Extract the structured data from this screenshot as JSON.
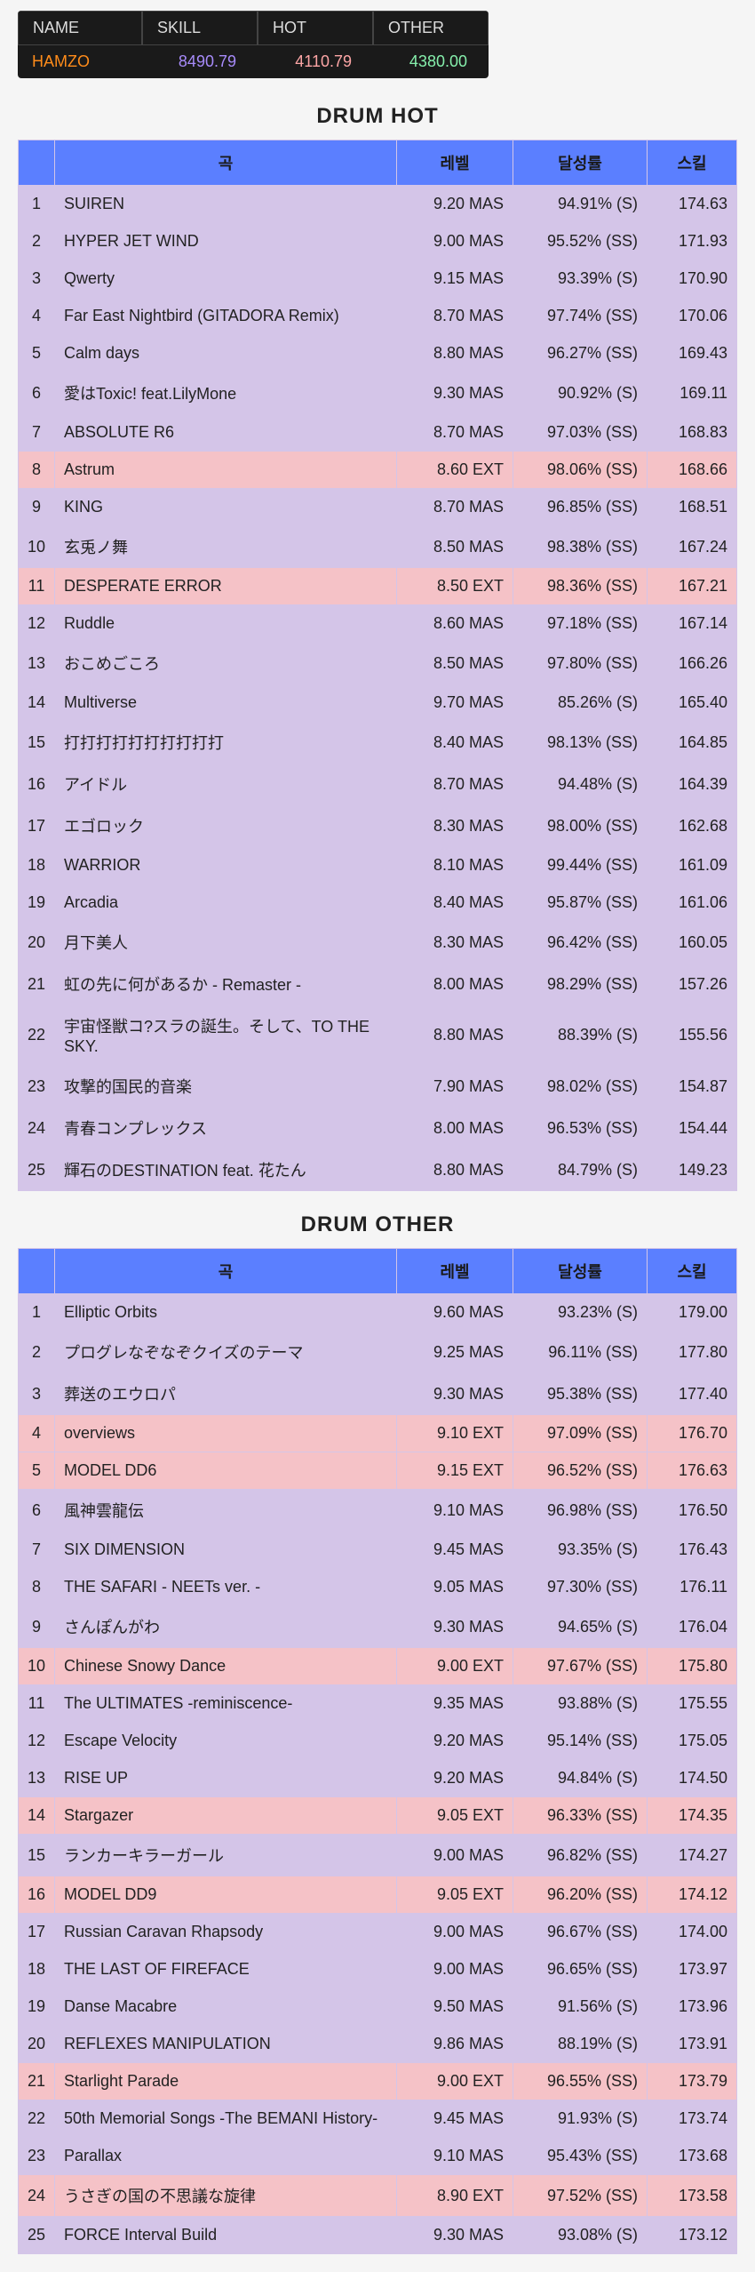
{
  "player": {
    "headers": {
      "name": "NAME",
      "skill": "SKILL",
      "hot": "HOT",
      "other": "OTHER"
    },
    "values": {
      "name": "HAMZO",
      "skill": "8490.79",
      "hot": "4110.79",
      "other": "4380.00"
    }
  },
  "section1_title": "DRUM HOT",
  "section2_title": "DRUM OTHER",
  "table_header": {
    "song": "곡",
    "level": "레벨",
    "rate": "달성률",
    "skill": "스킬"
  },
  "hot_rows": [
    {
      "rank": "1",
      "song": "SUIREN",
      "level": "9.20 MAS",
      "rate": "94.91% (S)",
      "skill": "174.63",
      "type": "MAS"
    },
    {
      "rank": "2",
      "song": "HYPER JET WIND",
      "level": "9.00 MAS",
      "rate": "95.52% (SS)",
      "skill": "171.93",
      "type": "MAS"
    },
    {
      "rank": "3",
      "song": "Qwerty",
      "level": "9.15 MAS",
      "rate": "93.39% (S)",
      "skill": "170.90",
      "type": "MAS"
    },
    {
      "rank": "4",
      "song": "Far East Nightbird (GITADORA Remix)",
      "level": "8.70 MAS",
      "rate": "97.74% (SS)",
      "skill": "170.06",
      "type": "MAS"
    },
    {
      "rank": "5",
      "song": "Calm days",
      "level": "8.80 MAS",
      "rate": "96.27% (SS)",
      "skill": "169.43",
      "type": "MAS"
    },
    {
      "rank": "6",
      "song": "愛はToxic! feat.LilyMone",
      "level": "9.30 MAS",
      "rate": "90.92% (S)",
      "skill": "169.11",
      "type": "MAS"
    },
    {
      "rank": "7",
      "song": "ABSOLUTE R6",
      "level": "8.70 MAS",
      "rate": "97.03% (SS)",
      "skill": "168.83",
      "type": "MAS"
    },
    {
      "rank": "8",
      "song": "Astrum",
      "level": "8.60 EXT",
      "rate": "98.06% (SS)",
      "skill": "168.66",
      "type": "EXT"
    },
    {
      "rank": "9",
      "song": "KING",
      "level": "8.70 MAS",
      "rate": "96.85% (SS)",
      "skill": "168.51",
      "type": "MAS"
    },
    {
      "rank": "10",
      "song": "玄兎ノ舞",
      "level": "8.50 MAS",
      "rate": "98.38% (SS)",
      "skill": "167.24",
      "type": "MAS"
    },
    {
      "rank": "11",
      "song": "DESPERATE ERROR",
      "level": "8.50 EXT",
      "rate": "98.36% (SS)",
      "skill": "167.21",
      "type": "EXT"
    },
    {
      "rank": "12",
      "song": "Ruddle",
      "level": "8.60 MAS",
      "rate": "97.18% (SS)",
      "skill": "167.14",
      "type": "MAS"
    },
    {
      "rank": "13",
      "song": "おこめごころ",
      "level": "8.50 MAS",
      "rate": "97.80% (SS)",
      "skill": "166.26",
      "type": "MAS"
    },
    {
      "rank": "14",
      "song": "Multiverse",
      "level": "9.70 MAS",
      "rate": "85.26% (S)",
      "skill": "165.40",
      "type": "MAS"
    },
    {
      "rank": "15",
      "song": "打打打打打打打打打打",
      "level": "8.40 MAS",
      "rate": "98.13% (SS)",
      "skill": "164.85",
      "type": "MAS"
    },
    {
      "rank": "16",
      "song": "アイドル",
      "level": "8.70 MAS",
      "rate": "94.48% (S)",
      "skill": "164.39",
      "type": "MAS"
    },
    {
      "rank": "17",
      "song": "エゴロック",
      "level": "8.30 MAS",
      "rate": "98.00% (SS)",
      "skill": "162.68",
      "type": "MAS"
    },
    {
      "rank": "18",
      "song": "WARRIOR",
      "level": "8.10 MAS",
      "rate": "99.44% (SS)",
      "skill": "161.09",
      "type": "MAS"
    },
    {
      "rank": "19",
      "song": "Arcadia",
      "level": "8.40 MAS",
      "rate": "95.87% (SS)",
      "skill": "161.06",
      "type": "MAS"
    },
    {
      "rank": "20",
      "song": "月下美人",
      "level": "8.30 MAS",
      "rate": "96.42% (SS)",
      "skill": "160.05",
      "type": "MAS"
    },
    {
      "rank": "21",
      "song": "虹の先に何があるか - Remaster -",
      "level": "8.00 MAS",
      "rate": "98.29% (SS)",
      "skill": "157.26",
      "type": "MAS"
    },
    {
      "rank": "22",
      "song": "宇宙怪獣コ?スラの誕生。そして、TO THE SKY.",
      "level": "8.80 MAS",
      "rate": "88.39% (S)",
      "skill": "155.56",
      "type": "MAS"
    },
    {
      "rank": "23",
      "song": "攻撃的国民的音楽",
      "level": "7.90 MAS",
      "rate": "98.02% (SS)",
      "skill": "154.87",
      "type": "MAS"
    },
    {
      "rank": "24",
      "song": "青春コンプレックス",
      "level": "8.00 MAS",
      "rate": "96.53% (SS)",
      "skill": "154.44",
      "type": "MAS"
    },
    {
      "rank": "25",
      "song": "輝石のDESTINATION feat. 花たん",
      "level": "8.80 MAS",
      "rate": "84.79% (S)",
      "skill": "149.23",
      "type": "MAS"
    }
  ],
  "other_rows": [
    {
      "rank": "1",
      "song": "Elliptic Orbits",
      "level": "9.60 MAS",
      "rate": "93.23% (S)",
      "skill": "179.00",
      "type": "MAS"
    },
    {
      "rank": "2",
      "song": "プログレなぞなぞクイズのテーマ",
      "level": "9.25 MAS",
      "rate": "96.11% (SS)",
      "skill": "177.80",
      "type": "MAS"
    },
    {
      "rank": "3",
      "song": "葬送のエウロパ",
      "level": "9.30 MAS",
      "rate": "95.38% (SS)",
      "skill": "177.40",
      "type": "MAS"
    },
    {
      "rank": "4",
      "song": "overviews",
      "level": "9.10 EXT",
      "rate": "97.09% (SS)",
      "skill": "176.70",
      "type": "EXT"
    },
    {
      "rank": "5",
      "song": "MODEL DD6",
      "level": "9.15 EXT",
      "rate": "96.52% (SS)",
      "skill": "176.63",
      "type": "EXT"
    },
    {
      "rank": "6",
      "song": "風神雲龍伝",
      "level": "9.10 MAS",
      "rate": "96.98% (SS)",
      "skill": "176.50",
      "type": "MAS"
    },
    {
      "rank": "7",
      "song": "SIX DIMENSION",
      "level": "9.45 MAS",
      "rate": "93.35% (S)",
      "skill": "176.43",
      "type": "MAS"
    },
    {
      "rank": "8",
      "song": "THE SAFARI - NEETs ver. -",
      "level": "9.05 MAS",
      "rate": "97.30% (SS)",
      "skill": "176.11",
      "type": "MAS"
    },
    {
      "rank": "9",
      "song": "さんぽんがわ",
      "level": "9.30 MAS",
      "rate": "94.65% (S)",
      "skill": "176.04",
      "type": "MAS"
    },
    {
      "rank": "10",
      "song": "Chinese Snowy Dance",
      "level": "9.00 EXT",
      "rate": "97.67% (SS)",
      "skill": "175.80",
      "type": "EXT"
    },
    {
      "rank": "11",
      "song": "The ULTIMATES -reminiscence-",
      "level": "9.35 MAS",
      "rate": "93.88% (S)",
      "skill": "175.55",
      "type": "MAS"
    },
    {
      "rank": "12",
      "song": "Escape Velocity",
      "level": "9.20 MAS",
      "rate": "95.14% (SS)",
      "skill": "175.05",
      "type": "MAS"
    },
    {
      "rank": "13",
      "song": "RISE UP",
      "level": "9.20 MAS",
      "rate": "94.84% (S)",
      "skill": "174.50",
      "type": "MAS"
    },
    {
      "rank": "14",
      "song": "Stargazer",
      "level": "9.05 EXT",
      "rate": "96.33% (SS)",
      "skill": "174.35",
      "type": "EXT"
    },
    {
      "rank": "15",
      "song": "ランカーキラーガール",
      "level": "9.00 MAS",
      "rate": "96.82% (SS)",
      "skill": "174.27",
      "type": "MAS"
    },
    {
      "rank": "16",
      "song": "MODEL DD9",
      "level": "9.05 EXT",
      "rate": "96.20% (SS)",
      "skill": "174.12",
      "type": "EXT"
    },
    {
      "rank": "17",
      "song": "Russian Caravan Rhapsody",
      "level": "9.00 MAS",
      "rate": "96.67% (SS)",
      "skill": "174.00",
      "type": "MAS"
    },
    {
      "rank": "18",
      "song": "THE LAST OF FIREFACE",
      "level": "9.00 MAS",
      "rate": "96.65% (SS)",
      "skill": "173.97",
      "type": "MAS"
    },
    {
      "rank": "19",
      "song": "Danse Macabre",
      "level": "9.50 MAS",
      "rate": "91.56% (S)",
      "skill": "173.96",
      "type": "MAS"
    },
    {
      "rank": "20",
      "song": "REFLEXES MANIPULATION",
      "level": "9.86 MAS",
      "rate": "88.19% (S)",
      "skill": "173.91",
      "type": "MAS"
    },
    {
      "rank": "21",
      "song": "Starlight Parade",
      "level": "9.00 EXT",
      "rate": "96.55% (SS)",
      "skill": "173.79",
      "type": "EXT"
    },
    {
      "rank": "22",
      "song": "50th Memorial Songs -The BEMANI History-",
      "level": "9.45 MAS",
      "rate": "91.93% (S)",
      "skill": "173.74",
      "type": "MAS"
    },
    {
      "rank": "23",
      "song": "Parallax",
      "level": "9.10 MAS",
      "rate": "95.43% (SS)",
      "skill": "173.68",
      "type": "MAS"
    },
    {
      "rank": "24",
      "song": "うさぎの国の不思議な旋律",
      "level": "8.90 EXT",
      "rate": "97.52% (SS)",
      "skill": "173.58",
      "type": "EXT"
    },
    {
      "rank": "25",
      "song": "FORCE Interval Build",
      "level": "9.30 MAS",
      "rate": "93.08% (S)",
      "skill": "173.12",
      "type": "MAS"
    }
  ]
}
